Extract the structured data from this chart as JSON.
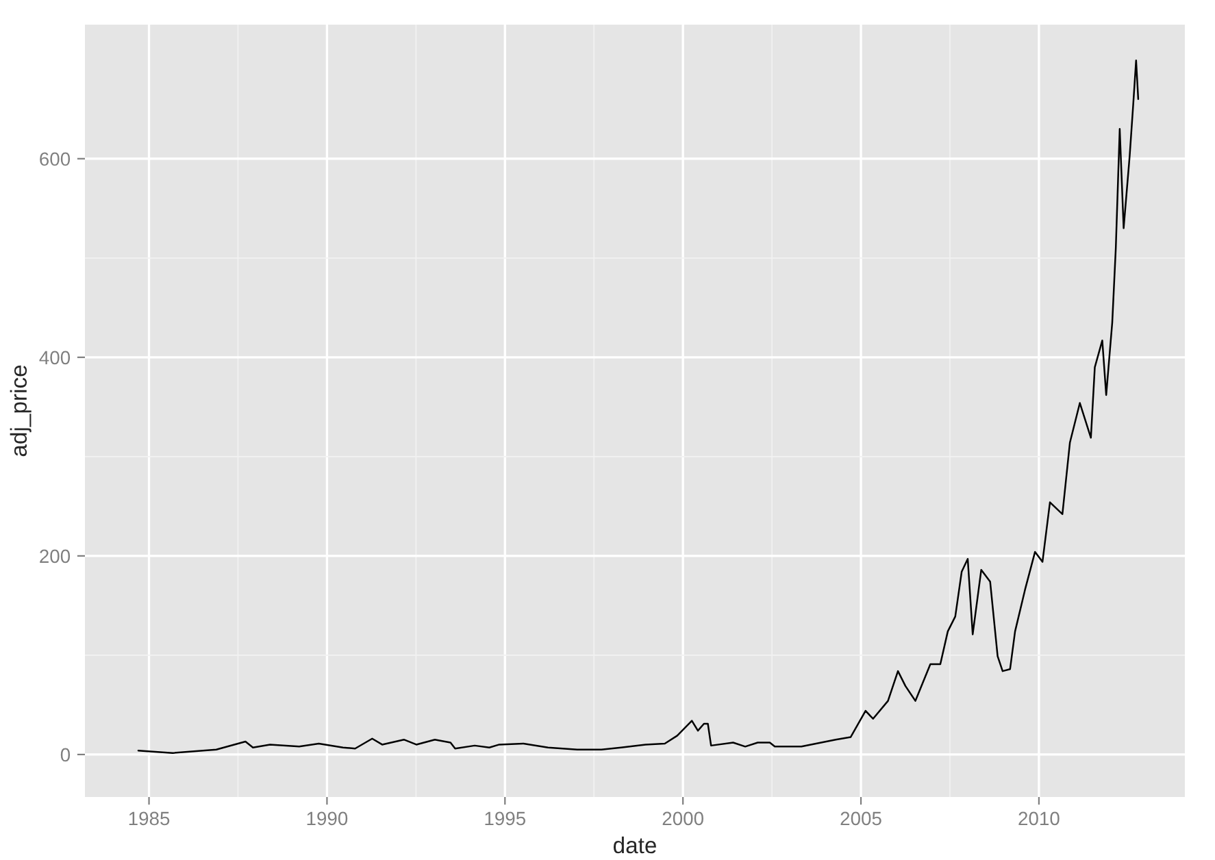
{
  "chart_data": {
    "type": "line",
    "xlabel": "date",
    "ylabel": "adj_price",
    "x": [
      1984.7,
      1985.66,
      1986.89,
      1987.71,
      1987.92,
      1988.4,
      1989.22,
      1989.77,
      1990.45,
      1990.79,
      1991.27,
      1991.55,
      1992.16,
      1992.51,
      1993.03,
      1993.47,
      1993.6,
      1994.15,
      1994.56,
      1994.84,
      1995.52,
      1996.21,
      1997.03,
      1997.71,
      1998.26,
      1998.95,
      1999.49,
      1999.84,
      2000.25,
      2000.42,
      2000.59,
      2000.7,
      2000.79,
      2001.41,
      2001.75,
      2002.1,
      2002.44,
      2002.58,
      2003.33,
      2004.29,
      2004.71,
      2005.13,
      2005.34,
      2005.76,
      2006.04,
      2006.25,
      2006.53,
      2006.95,
      2007.23,
      2007.44,
      2007.65,
      2007.83,
      2008.0,
      2008.14,
      2008.38,
      2008.63,
      2008.84,
      2008.98,
      2009.19,
      2009.33,
      2009.61,
      2009.89,
      2010.1,
      2010.31,
      2010.66,
      2010.87,
      2011.15,
      2011.46,
      2011.57,
      2011.78,
      2011.89,
      2012.06,
      2012.16,
      2012.27,
      2012.38,
      2012.55,
      2012.65,
      2012.73,
      2012.79
    ],
    "series": [
      {
        "color": "#000000",
        "values": [
          4,
          1.5,
          5,
          13,
          7,
          10,
          8,
          11,
          7,
          6,
          16,
          10,
          15,
          10,
          15,
          12,
          6,
          9,
          7,
          10,
          11,
          7,
          5,
          5,
          7,
          10,
          11,
          19,
          34,
          24,
          31,
          31,
          9,
          12,
          8,
          12,
          12,
          8,
          8,
          15,
          17.5,
          44,
          36,
          54,
          84,
          69,
          54,
          91,
          91,
          124,
          139,
          184,
          197,
          121,
          186,
          174,
          99,
          84,
          86,
          124,
          166,
          204,
          194,
          254,
          242,
          314,
          354,
          319,
          390,
          417,
          362,
          435,
          510,
          630,
          530,
          603,
          655,
          699,
          660
        ]
      }
    ],
    "xlim": [
      1983.2,
      2014.1
    ],
    "ylim": [
      -42.8,
      735
    ],
    "xticks": [
      1985,
      1990,
      1995,
      2000,
      2005,
      2010
    ],
    "yticks": [
      0,
      200,
      400,
      600
    ],
    "grid": true,
    "legend": false,
    "marker": "none",
    "line_style": "solid"
  }
}
